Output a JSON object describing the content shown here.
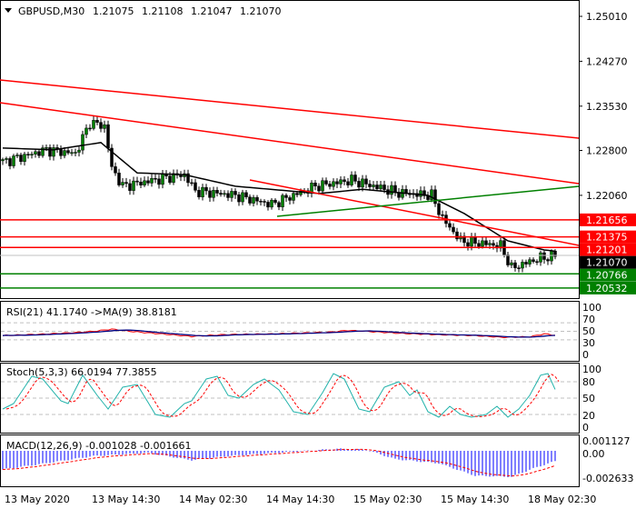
{
  "header": {
    "symbol": "GBPUSD,M30",
    "open": "1.21075",
    "high": "1.21108",
    "low": "1.21047",
    "close": "1.21070"
  },
  "chart_data": {
    "type": "candlestick",
    "title": "GBPUSD,M30",
    "bars": 153,
    "price_axis": {
      "ticks": [
        "1.25010",
        "1.24270",
        "1.23530",
        "1.22800",
        "1.22060"
      ],
      "range": [
        1.204,
        1.2528
      ]
    },
    "close_anchors": [
      [
        0,
        1.2261
      ],
      [
        12,
        1.2281
      ],
      [
        20,
        1.2275
      ],
      [
        24,
        1.2326
      ],
      [
        28,
        1.232
      ],
      [
        30,
        1.2251
      ],
      [
        33,
        1.2221
      ],
      [
        45,
        1.2235
      ],
      [
        50,
        1.224
      ],
      [
        53,
        1.2213
      ],
      [
        64,
        1.2206
      ],
      [
        74,
        1.2191
      ],
      [
        86,
        1.2221
      ],
      [
        96,
        1.2231
      ],
      [
        109,
        1.221
      ],
      [
        118,
        1.2206
      ],
      [
        121,
        1.2168
      ],
      [
        126,
        1.2131
      ],
      [
        137,
        1.2123
      ],
      [
        140,
        1.2086
      ],
      [
        147,
        1.2101
      ],
      [
        152,
        1.2107
      ]
    ],
    "ma_anchors": [
      [
        0,
        1.2284
      ],
      [
        14,
        1.2281
      ],
      [
        27,
        1.2293
      ],
      [
        37,
        1.2243
      ],
      [
        50,
        1.224
      ],
      [
        64,
        1.2221
      ],
      [
        87,
        1.2209
      ],
      [
        99,
        1.2216
      ],
      [
        117,
        1.2206
      ],
      [
        127,
        1.2176
      ],
      [
        139,
        1.2131
      ],
      [
        149,
        1.2116
      ],
      [
        152,
        1.2114
      ]
    ],
    "trendlines": [
      {
        "color": "#ff0000",
        "from": [
          -0.75,
          1.23961
        ],
        "to": [
          158.5,
          1.23002
        ]
      },
      {
        "color": "#ff0000",
        "from": [
          -0.75,
          1.23587
        ],
        "to": [
          158.5,
          1.22253
        ]
      },
      {
        "color": "#ff0000",
        "from": [
          68,
          1.22313
        ],
        "to": [
          158.5,
          1.21235
        ]
      },
      {
        "color": "#008000",
        "from": [
          75.5,
          1.21714
        ],
        "to": [
          158.5,
          1.22209
        ]
      }
    ],
    "levels": [
      {
        "price": 1.21656,
        "label": "1.21656",
        "color": "#ff0000"
      },
      {
        "price": 1.21375,
        "label": "1.21375",
        "color": "#ff0000"
      },
      {
        "price": 1.21201,
        "label": "1.21201",
        "color": "#ff0000"
      },
      {
        "price": 1.20766,
        "label": "1.20766",
        "color": "#008000"
      },
      {
        "price": 1.20532,
        "label": "1.20532",
        "color": "#008000"
      }
    ],
    "current_price": {
      "price": 1.2107,
      "label": "1.21070",
      "color": "#000000"
    },
    "time_labels": [
      [
        0,
        "13 May 2020"
      ],
      [
        24,
        "13 May 14:30"
      ],
      [
        48,
        "14 May 02:30"
      ],
      [
        72,
        "14 May 14:30"
      ],
      [
        96,
        "15 May 02:30"
      ],
      [
        120,
        "15 May 14:30"
      ],
      [
        144,
        "18 May 02:30"
      ]
    ],
    "rsi": {
      "title": "RSI(21) 41.1740  ->MA(9) 38.8181",
      "ticks": [
        "100",
        "70",
        "50",
        "30",
        "0"
      ],
      "levels": [
        70,
        50,
        30
      ],
      "anchors": [
        [
          0,
          40
        ],
        [
          10,
          43
        ],
        [
          20,
          47
        ],
        [
          25,
          50
        ],
        [
          30,
          55
        ],
        [
          35,
          50
        ],
        [
          45,
          43
        ],
        [
          52,
          38
        ],
        [
          60,
          42
        ],
        [
          75,
          44
        ],
        [
          90,
          48
        ],
        [
          95,
          52
        ],
        [
          100,
          50
        ],
        [
          110,
          45
        ],
        [
          120,
          42
        ],
        [
          130,
          40
        ],
        [
          137,
          36
        ],
        [
          145,
          37
        ],
        [
          149,
          44
        ],
        [
          152,
          41
        ]
      ]
    },
    "stoch": {
      "title": "Stoch(5,3,3) 66.0194 77.3855",
      "ticks": [
        "100",
        "80",
        "50",
        "20",
        "0"
      ],
      "levels": [
        80,
        50,
        20
      ],
      "k_anchors": [
        [
          0,
          30
        ],
        [
          3,
          40
        ],
        [
          8,
          90
        ],
        [
          11,
          85
        ],
        [
          16,
          45
        ],
        [
          18,
          40
        ],
        [
          22,
          92
        ],
        [
          26,
          55
        ],
        [
          29,
          30
        ],
        [
          33,
          70
        ],
        [
          37,
          75
        ],
        [
          42,
          20
        ],
        [
          46,
          15
        ],
        [
          50,
          40
        ],
        [
          52,
          45
        ],
        [
          56,
          85
        ],
        [
          59,
          90
        ],
        [
          62,
          55
        ],
        [
          65,
          50
        ],
        [
          69,
          75
        ],
        [
          72,
          85
        ],
        [
          76,
          65
        ],
        [
          80,
          25
        ],
        [
          84,
          20
        ],
        [
          88,
          60
        ],
        [
          91,
          95
        ],
        [
          94,
          85
        ],
        [
          98,
          30
        ],
        [
          101,
          25
        ],
        [
          105,
          70
        ],
        [
          109,
          80
        ],
        [
          112,
          55
        ],
        [
          114,
          65
        ],
        [
          117,
          25
        ],
        [
          120,
          15
        ],
        [
          123,
          35
        ],
        [
          126,
          20
        ],
        [
          129,
          15
        ],
        [
          133,
          20
        ],
        [
          136,
          35
        ],
        [
          139,
          15
        ],
        [
          142,
          30
        ],
        [
          145,
          55
        ],
        [
          148,
          92
        ],
        [
          150,
          95
        ],
        [
          152,
          66
        ]
      ]
    },
    "macd": {
      "title": "MACD(12,26,9) -0.001028 -0.001661",
      "ticks": [
        "0.001127",
        "0.00",
        "-0.002633"
      ],
      "anchors": [
        [
          0,
          -0.0018
        ],
        [
          10,
          -0.0013
        ],
        [
          25,
          -0.0005
        ],
        [
          40,
          -0.0002
        ],
        [
          52,
          -0.0009
        ],
        [
          62,
          -0.0005
        ],
        [
          75,
          -0.0002
        ],
        [
          92,
          0.0002
        ],
        [
          100,
          0.0001
        ],
        [
          108,
          -0.0008
        ],
        [
          120,
          -0.0012
        ],
        [
          130,
          -0.0024
        ],
        [
          140,
          -0.0025
        ],
        [
          146,
          -0.0017
        ],
        [
          152,
          -0.001
        ]
      ]
    }
  }
}
